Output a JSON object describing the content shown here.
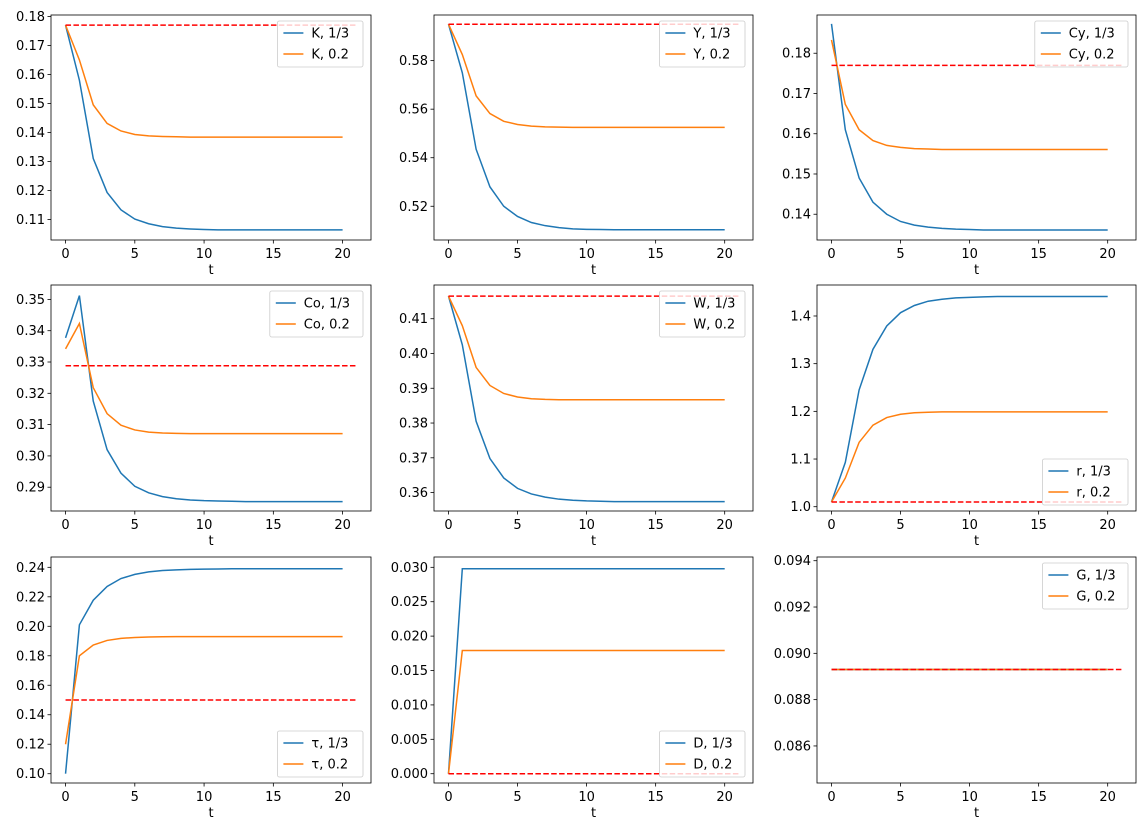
{
  "colors": {
    "series_1_3": "#1f77b4",
    "series_0_2": "#ff7f0e",
    "reference": "#ff0000"
  },
  "chart_data": [
    {
      "type": "line",
      "xlabel": "t",
      "x": [
        0,
        1,
        2,
        3,
        4,
        5,
        6,
        7,
        8,
        9,
        10,
        11,
        12,
        13,
        14,
        15,
        16,
        17,
        18,
        19,
        20
      ],
      "xlim": [
        -1.05,
        22.05
      ],
      "ylim": [
        0.1029,
        0.1805
      ],
      "xticks": [
        "0",
        "5",
        "10",
        "15",
        "20"
      ],
      "yticks": [
        "0.11",
        "0.12",
        "0.13",
        "0.14",
        "0.15",
        "0.16",
        "0.17",
        "0.18"
      ],
      "legend": "upper-right",
      "reference": 0.177,
      "reference_x": [
        0,
        21
      ],
      "series": [
        {
          "name": "K, 1/3",
          "values": [
            0.177,
            0.158,
            0.131,
            0.1193,
            0.1133,
            0.1101,
            0.1085,
            0.1075,
            0.107,
            0.1067,
            0.1065,
            0.1064,
            0.1064,
            0.1064,
            0.1064,
            0.1064,
            0.1064,
            0.1064,
            0.1064,
            0.1064,
            0.1064
          ]
        },
        {
          "name": "K, 0.2",
          "values": [
            0.177,
            0.165,
            0.1495,
            0.1431,
            0.1405,
            0.1393,
            0.1388,
            0.1386,
            0.1385,
            0.1384,
            0.1384,
            0.1384,
            0.1384,
            0.1384,
            0.1384,
            0.1384,
            0.1384,
            0.1384,
            0.1384,
            0.1384,
            0.1384
          ]
        }
      ]
    },
    {
      "type": "line",
      "xlabel": "t",
      "x": [
        0,
        1,
        2,
        3,
        4,
        5,
        6,
        7,
        8,
        9,
        10,
        11,
        12,
        13,
        14,
        15,
        16,
        17,
        18,
        19,
        20
      ],
      "xlim": [
        -1.05,
        22.05
      ],
      "ylim": [
        0.5061,
        0.5988
      ],
      "xticks": [
        "0",
        "5",
        "10",
        "15",
        "20"
      ],
      "yticks": [
        "0.52",
        "0.54",
        "0.56",
        "0.58"
      ],
      "legend": "upper-right",
      "reference": 0.595,
      "reference_x": [
        0,
        21
      ],
      "series": [
        {
          "name": "Y, 1/3",
          "values": [
            0.595,
            0.575,
            0.5435,
            0.528,
            0.52,
            0.5158,
            0.5133,
            0.512,
            0.5112,
            0.5107,
            0.5105,
            0.5104,
            0.5103,
            0.5103,
            0.5103,
            0.5103,
            0.5103,
            0.5103,
            0.5103,
            0.5103,
            0.5103
          ]
        },
        {
          "name": "Y, 0.2",
          "values": [
            0.595,
            0.5825,
            0.5655,
            0.5582,
            0.555,
            0.5537,
            0.553,
            0.5527,
            0.5526,
            0.5525,
            0.5525,
            0.5525,
            0.5525,
            0.5525,
            0.5525,
            0.5525,
            0.5525,
            0.5525,
            0.5525,
            0.5525,
            0.5525
          ]
        }
      ]
    },
    {
      "type": "line",
      "xlabel": "t",
      "x": [
        0,
        1,
        2,
        3,
        4,
        5,
        6,
        7,
        8,
        9,
        10,
        11,
        12,
        13,
        14,
        15,
        16,
        17,
        18,
        19,
        20
      ],
      "xlim": [
        -1.05,
        22.05
      ],
      "ylim": [
        0.1336,
        0.1895
      ],
      "xticks": [
        "0",
        "5",
        "10",
        "15",
        "20"
      ],
      "yticks": [
        "0.14",
        "0.15",
        "0.16",
        "0.17",
        "0.18"
      ],
      "legend": "upper-right",
      "reference": 0.177,
      "reference_x": [
        0,
        21
      ],
      "series": [
        {
          "name": "Cy, 1/3",
          "values": [
            0.1873,
            0.161,
            0.149,
            0.143,
            0.14,
            0.1382,
            0.1373,
            0.1368,
            0.1365,
            0.1363,
            0.1362,
            0.1361,
            0.1361,
            0.1361,
            0.1361,
            0.1361,
            0.1361,
            0.1361,
            0.1361,
            0.1361,
            0.1361
          ]
        },
        {
          "name": "Cy, 0.2",
          "values": [
            0.1833,
            0.1673,
            0.161,
            0.1583,
            0.1571,
            0.1566,
            0.1563,
            0.1562,
            0.1561,
            0.1561,
            0.1561,
            0.1561,
            0.1561,
            0.1561,
            0.1561,
            0.1561,
            0.1561,
            0.1561,
            0.1561,
            0.1561,
            0.1561
          ]
        }
      ]
    },
    {
      "type": "line",
      "xlabel": "t",
      "x": [
        0,
        1,
        2,
        3,
        4,
        5,
        6,
        7,
        8,
        9,
        10,
        11,
        12,
        13,
        14,
        15,
        16,
        17,
        18,
        19,
        20
      ],
      "xlim": [
        -1.05,
        22.05
      ],
      "ylim": [
        0.2824,
        0.3546
      ],
      "xticks": [
        "0",
        "5",
        "10",
        "15",
        "20"
      ],
      "yticks": [
        "0.29",
        "0.30",
        "0.31",
        "0.32",
        "0.33",
        "0.34",
        "0.35"
      ],
      "legend": "upper-right",
      "reference": 0.3288,
      "reference_x": [
        0,
        21
      ],
      "series": [
        {
          "name": "Co, 1/3",
          "values": [
            0.3377,
            0.3512,
            0.3175,
            0.302,
            0.2945,
            0.2903,
            0.2882,
            0.287,
            0.2863,
            0.2859,
            0.2857,
            0.2856,
            0.2855,
            0.2854,
            0.2854,
            0.2854,
            0.2854,
            0.2854,
            0.2854,
            0.2854,
            0.2854
          ]
        },
        {
          "name": "Co, 0.2",
          "values": [
            0.3342,
            0.3423,
            0.3218,
            0.3135,
            0.3098,
            0.3083,
            0.3076,
            0.3073,
            0.3072,
            0.3071,
            0.3071,
            0.3071,
            0.3071,
            0.3071,
            0.3071,
            0.3071,
            0.3071,
            0.3071,
            0.3071,
            0.3071,
            0.3071
          ]
        }
      ]
    },
    {
      "type": "line",
      "xlabel": "t",
      "x": [
        0,
        1,
        2,
        3,
        4,
        5,
        6,
        7,
        8,
        9,
        10,
        11,
        12,
        13,
        14,
        15,
        16,
        17,
        18,
        19,
        20
      ],
      "xlim": [
        -1.05,
        22.05
      ],
      "ylim": [
        0.3547,
        0.4197
      ],
      "xticks": [
        "0",
        "5",
        "10",
        "15",
        "20"
      ],
      "yticks": [
        "0.36",
        "0.37",
        "0.38",
        "0.39",
        "0.40",
        "0.41"
      ],
      "legend": "upper-right",
      "reference": 0.4165,
      "reference_x": [
        0,
        21
      ],
      "series": [
        {
          "name": "W, 1/3",
          "values": [
            0.4165,
            0.4025,
            0.3805,
            0.3698,
            0.3642,
            0.3612,
            0.3596,
            0.3587,
            0.3581,
            0.3578,
            0.3576,
            0.3575,
            0.3574,
            0.3574,
            0.3574,
            0.3574,
            0.3574,
            0.3574,
            0.3574,
            0.3574,
            0.3574
          ]
        },
        {
          "name": "W, 0.2",
          "values": [
            0.4165,
            0.408,
            0.396,
            0.3908,
            0.3885,
            0.3875,
            0.387,
            0.3868,
            0.3867,
            0.3867,
            0.3867,
            0.3867,
            0.3867,
            0.3867,
            0.3867,
            0.3867,
            0.3867,
            0.3867,
            0.3867,
            0.3867,
            0.3867
          ]
        }
      ]
    },
    {
      "type": "line",
      "xlabel": "t",
      "x": [
        0,
        1,
        2,
        3,
        4,
        5,
        6,
        7,
        8,
        9,
        10,
        11,
        12,
        13,
        14,
        15,
        16,
        17,
        18,
        19,
        20
      ],
      "xlim": [
        -1.05,
        22.05
      ],
      "ylim": [
        0.991,
        1.465
      ],
      "xticks": [
        "0",
        "5",
        "10",
        "15",
        "20"
      ],
      "yticks": [
        "1.0",
        "1.1",
        "1.2",
        "1.3",
        "1.4"
      ],
      "legend": "lower-right",
      "reference": 1.01,
      "reference_x": [
        0,
        21
      ],
      "series": [
        {
          "name": "r, 1/3",
          "values": [
            1.01,
            1.093,
            1.245,
            1.33,
            1.379,
            1.407,
            1.422,
            1.431,
            1.435,
            1.438,
            1.439,
            1.44,
            1.441,
            1.441,
            1.441,
            1.441,
            1.441,
            1.441,
            1.441,
            1.441,
            1.441
          ]
        },
        {
          "name": "r, 0.2",
          "values": [
            1.01,
            1.06,
            1.135,
            1.171,
            1.187,
            1.194,
            1.197,
            1.198,
            1.199,
            1.199,
            1.199,
            1.199,
            1.199,
            1.199,
            1.199,
            1.199,
            1.199,
            1.199,
            1.199,
            1.199,
            1.199
          ]
        }
      ]
    },
    {
      "type": "line",
      "xlabel": "t",
      "x": [
        0,
        1,
        2,
        3,
        4,
        5,
        6,
        7,
        8,
        9,
        10,
        11,
        12,
        13,
        14,
        15,
        16,
        17,
        18,
        19,
        20
      ],
      "xlim": [
        -1.05,
        22.05
      ],
      "ylim": [
        0.0937,
        0.247
      ],
      "xticks": [
        "0",
        "5",
        "10",
        "15",
        "20"
      ],
      "yticks": [
        "0.10",
        "0.12",
        "0.14",
        "0.16",
        "0.18",
        "0.20",
        "0.22",
        "0.24"
      ],
      "legend": "lower-right",
      "reference": 0.15,
      "reference_x": [
        0,
        21
      ],
      "series": [
        {
          "name": "τ, 1/3",
          "values": [
            0.1,
            0.201,
            0.2177,
            0.227,
            0.2324,
            0.2352,
            0.2369,
            0.2378,
            0.2383,
            0.2386,
            0.2388,
            0.2389,
            0.239,
            0.239,
            0.239,
            0.239,
            0.239,
            0.239,
            0.239,
            0.239,
            0.239
          ]
        },
        {
          "name": "τ, 0.2",
          "values": [
            0.12,
            0.18,
            0.1873,
            0.1904,
            0.1918,
            0.1924,
            0.1927,
            0.1929,
            0.193,
            0.193,
            0.193,
            0.193,
            0.193,
            0.193,
            0.193,
            0.193,
            0.193,
            0.193,
            0.193,
            0.193,
            0.193
          ]
        }
      ]
    },
    {
      "type": "line",
      "xlabel": "t",
      "x": [
        0,
        1,
        2,
        3,
        4,
        5,
        6,
        7,
        8,
        9,
        10,
        11,
        12,
        13,
        14,
        15,
        16,
        17,
        18,
        19,
        20
      ],
      "xlim": [
        -1.05,
        22.05
      ],
      "ylim": [
        -0.00135,
        0.0315
      ],
      "xticks": [
        "0",
        "5",
        "10",
        "15",
        "20"
      ],
      "yticks": [
        "0.000",
        "0.005",
        "0.010",
        "0.015",
        "0.020",
        "0.025",
        "0.030"
      ],
      "legend": "lower-right",
      "reference": 0.0,
      "reference_x": [
        0,
        21
      ],
      "series": [
        {
          "name": "D, 1/3",
          "values": [
            0,
            0.0298,
            0.0298,
            0.0298,
            0.0298,
            0.0298,
            0.0298,
            0.0298,
            0.0298,
            0.0298,
            0.0298,
            0.0298,
            0.0298,
            0.0298,
            0.0298,
            0.0298,
            0.0298,
            0.0298,
            0.0298,
            0.0298,
            0.0298
          ]
        },
        {
          "name": "D, 0.2",
          "values": [
            0,
            0.0179,
            0.0179,
            0.0179,
            0.0179,
            0.0179,
            0.0179,
            0.0179,
            0.0179,
            0.0179,
            0.0179,
            0.0179,
            0.0179,
            0.0179,
            0.0179,
            0.0179,
            0.0179,
            0.0179,
            0.0179,
            0.0179,
            0.0179
          ]
        }
      ]
    },
    {
      "type": "line",
      "xlabel": "t",
      "x": [
        0,
        1,
        2,
        3,
        4,
        5,
        6,
        7,
        8,
        9,
        10,
        11,
        12,
        13,
        14,
        15,
        16,
        17,
        18,
        19,
        20
      ],
      "xlim": [
        -1.05,
        22.05
      ],
      "ylim": [
        0.0844,
        0.09416
      ],
      "xticks": [
        "0",
        "5",
        "10",
        "15",
        "20"
      ],
      "yticks": [
        "0.086",
        "0.088",
        "0.090",
        "0.092",
        "0.094"
      ],
      "legend": "upper-right",
      "reference": 0.0893,
      "reference_x": [
        0,
        21
      ],
      "series": [
        {
          "name": "G, 1/3",
          "values": [
            0.0893,
            0.0893,
            0.0893,
            0.0893,
            0.0893,
            0.0893,
            0.0893,
            0.0893,
            0.0893,
            0.0893,
            0.0893,
            0.0893,
            0.0893,
            0.0893,
            0.0893,
            0.0893,
            0.0893,
            0.0893,
            0.0893,
            0.0893,
            0.0893
          ]
        },
        {
          "name": "G, 0.2",
          "values": [
            0.0893,
            0.0893,
            0.0893,
            0.0893,
            0.0893,
            0.0893,
            0.0893,
            0.0893,
            0.0893,
            0.0893,
            0.0893,
            0.0893,
            0.0893,
            0.0893,
            0.0893,
            0.0893,
            0.0893,
            0.0893,
            0.0893,
            0.0893,
            0.0893
          ]
        }
      ]
    }
  ]
}
